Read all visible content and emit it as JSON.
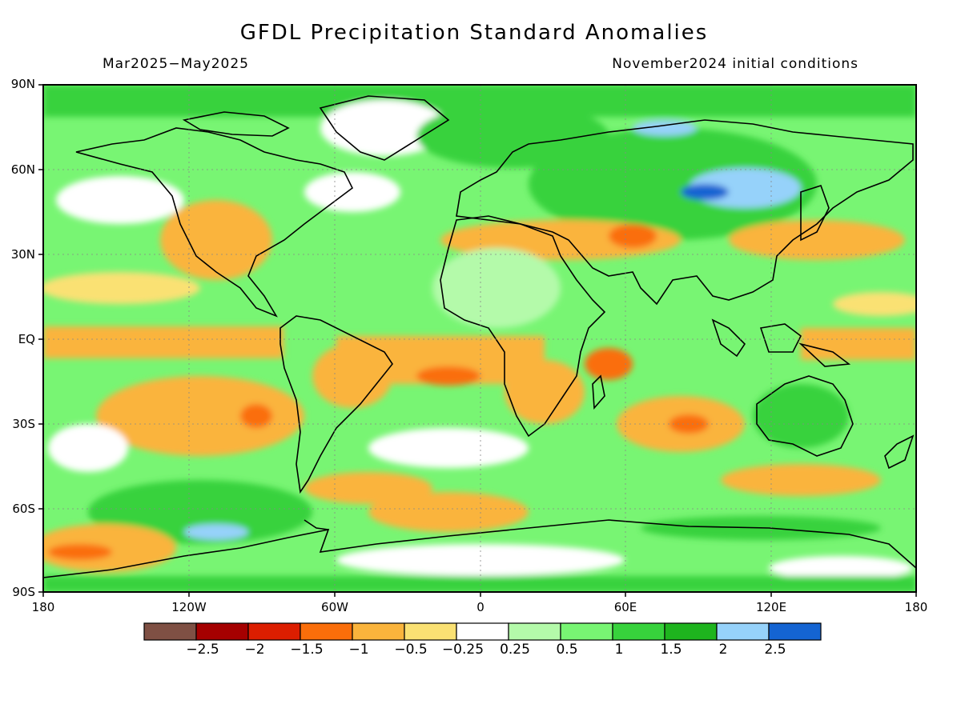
{
  "title": "GFDL Precipitation Standard Anomalies",
  "subtitle_left": "Mar2025−May2025",
  "subtitle_right": "November2024 initial conditions",
  "lat_labels": [
    "90N",
    "60N",
    "30N",
    "EQ",
    "30S",
    "60S",
    "90S"
  ],
  "lon_labels": [
    "180",
    "120W",
    "60W",
    "0",
    "60E",
    "120E",
    "180"
  ],
  "colorbar": {
    "colors": [
      "#7f5044",
      "#a50000",
      "#dc1e00",
      "#fa6e0a",
      "#fab43c",
      "#fae173",
      "#ffffff",
      "#b4faaa",
      "#78f573",
      "#37d23c",
      "#1eb41e",
      "#96d2fa",
      "#1464d2"
    ],
    "labels": [
      "−2.5",
      "−2",
      "−1.5",
      "−1",
      "−0.5",
      "−0.25",
      "0.25",
      "0.5",
      "1",
      "1.5",
      "2",
      "2.5"
    ]
  }
}
